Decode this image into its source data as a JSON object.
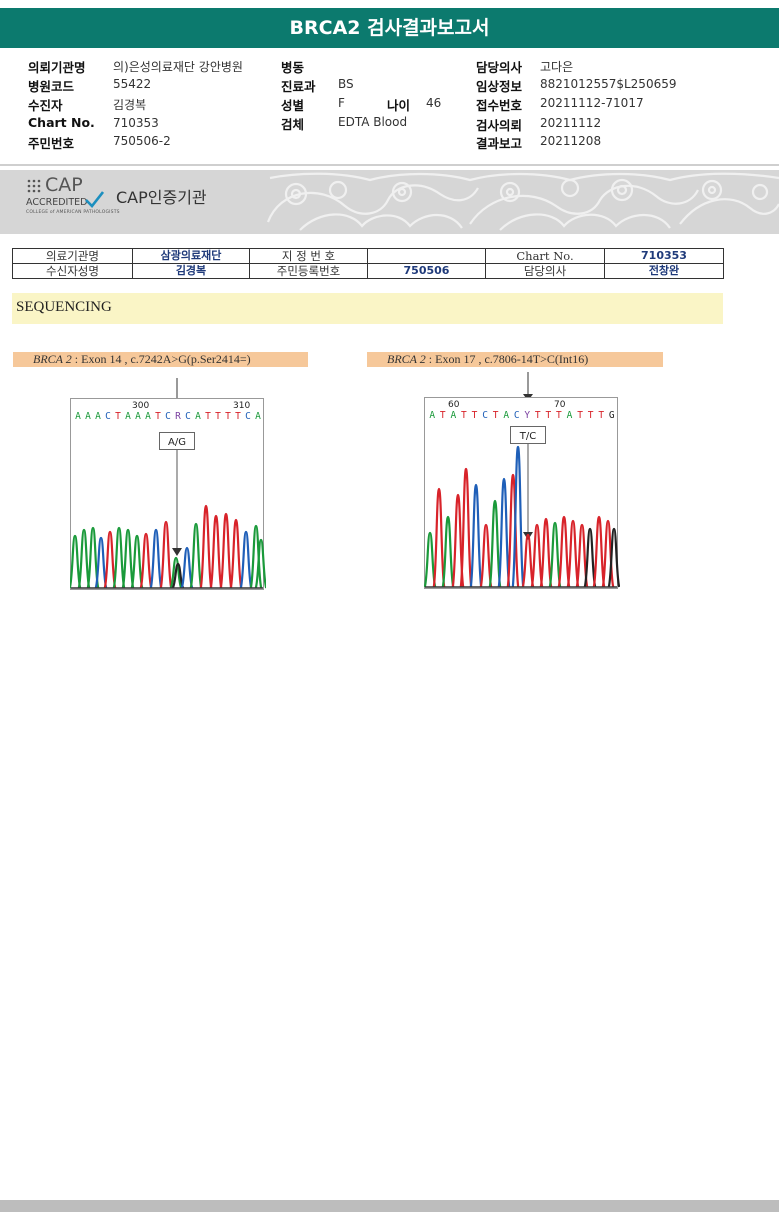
{
  "report": {
    "title": "BRCA2 검사결과보고서"
  },
  "patient": {
    "col1": [
      {
        "label": "의뢰기관명",
        "value": "의)은성의료재단 강안병원"
      },
      {
        "label": "병원코드",
        "value": "55422"
      },
      {
        "label": "수진자",
        "value": "김경복"
      },
      {
        "label": "Chart No.",
        "value": "710353"
      },
      {
        "label": "주민번호",
        "value": "750506-2"
      }
    ],
    "col2": [
      {
        "label": "병동",
        "value": ""
      },
      {
        "label": "진료과",
        "value": "BS"
      },
      {
        "label": "성별",
        "value": "F"
      },
      {
        "label": "검체",
        "value": "EDTA Blood"
      }
    ],
    "age": {
      "label": "나이",
      "value": "46"
    },
    "col3": [
      {
        "label": "담당의사",
        "value": "고다은"
      },
      {
        "label": "임상정보",
        "value": "8821012557$L250659"
      },
      {
        "label": "접수번호",
        "value": "20211112-71017"
      },
      {
        "label": "검사의뢰",
        "value": "20211112"
      },
      {
        "label": "결과보고",
        "value": "20211208"
      }
    ]
  },
  "cap": {
    "logo_word": "CAP",
    "accredited": "ACCREDITED",
    "college": "COLLEGE of AMERICAN PATHOLOGISTS",
    "title": "CAP인증기관"
  },
  "info_table": {
    "r1": [
      "의료기관명",
      "삼광의료재단",
      "지 정 번 호",
      "",
      "Chart No.",
      "710353"
    ],
    "r2": [
      "수신자성명",
      "김경복",
      "주민등록번호",
      "750506",
      "담당의사",
      "전창완"
    ]
  },
  "section": {
    "title": "SEQUENCING"
  },
  "chromatograms": [
    {
      "gene": "BRCA 2",
      "detail": " : Exon 14 , c.7242A>G(p.Ser2414=)",
      "pos_left": "300",
      "pos_right": "310",
      "sequence": "AAACTAAATCRCATTTTCA",
      "call": "A/G"
    },
    {
      "gene": "BRCA 2",
      "detail": " : Exon 17 , c.7806-14T>C(Int16)",
      "pos_left": "60",
      "pos_right": "70",
      "sequence": "ATATTCTACYTTTATTTG",
      "call": "T/C"
    }
  ],
  "colors": {
    "header": "#0c7a6e",
    "A": "#1a9a3a",
    "C": "#1f5fb8",
    "G": "#222222",
    "T": "#d8232a"
  }
}
